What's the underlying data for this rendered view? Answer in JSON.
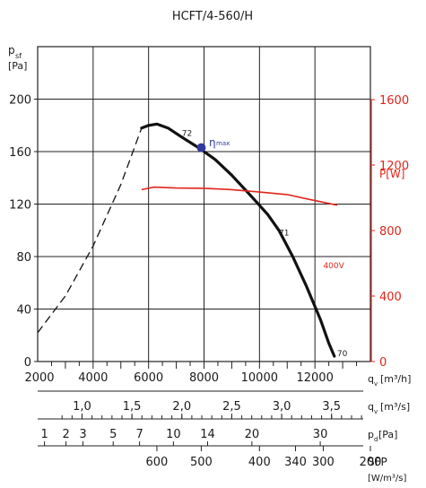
{
  "chart_data": {
    "type": "line",
    "title": "HCFT/4-560/H",
    "y_left": {
      "label_main": "p",
      "label_sub": "sf",
      "unit": "[Pa]",
      "ticks": [
        0,
        40,
        80,
        120,
        160,
        200
      ],
      "range": [
        0,
        240
      ]
    },
    "y_right": {
      "label": "P[W]",
      "ticks": [
        0,
        400,
        800,
        1200,
        1600
      ],
      "ticks_text": [
        "0",
        "400",
        "800",
        "1200",
        "1600"
      ],
      "range": [
        0,
        1600
      ]
    },
    "x": {
      "ticks": [
        2000,
        4000,
        6000,
        8000,
        10000,
        12000
      ],
      "ticks_text": [
        "2000",
        "4000",
        "6000",
        "8000",
        "10000",
        "12000"
      ],
      "range": [
        2000,
        14000
      ],
      "unit_main": "q",
      "unit_sub": "v",
      "unit": "[m³/h]"
    },
    "scale_m3s": {
      "ticks": [
        "1,0",
        "1,5",
        "2,0",
        "2,5",
        "3,0",
        "3,5"
      ],
      "ticks_qv": [
        3600,
        5400,
        7200,
        9000,
        10800,
        12600
      ],
      "unit_main": "q",
      "unit_sub": "v",
      "unit": "[m³/s]"
    },
    "scale_pd": {
      "ticks": [
        "1",
        "2",
        "3",
        "5",
        "7",
        "10",
        "14",
        "20",
        "30"
      ],
      "ticks_pos": [
        0.021,
        0.087,
        0.139,
        0.232,
        0.313,
        0.417,
        0.522,
        0.658,
        0.868
      ],
      "unit_main": "p",
      "unit_sub": "d",
      "unit": "[Pa]"
    },
    "scale_sfp": {
      "ticks": [
        "600",
        "500",
        "400",
        "340",
        "300",
        "200"
      ],
      "ticks_qv": [
        6300,
        7900,
        10000,
        11300,
        12300,
        14000
      ],
      "unit": "SFP",
      "unit2": "[W/m³/s]"
    },
    "series": [
      {
        "name": "pressure",
        "unstable_dashed": [
          [
            2000,
            22
          ],
          [
            3000,
            50
          ],
          [
            4000,
            88
          ],
          [
            5000,
            135
          ],
          [
            5750,
            178
          ]
        ],
        "values": [
          [
            5750,
            178
          ],
          [
            6000,
            180
          ],
          [
            6300,
            181
          ],
          [
            6700,
            178
          ],
          [
            7200,
            171
          ],
          [
            7800,
            163
          ],
          [
            8400,
            154
          ],
          [
            9000,
            142
          ],
          [
            9700,
            126
          ],
          [
            10300,
            112
          ],
          [
            10700,
            100
          ],
          [
            11200,
            80
          ],
          [
            11700,
            57
          ],
          [
            12200,
            32
          ],
          [
            12500,
            14
          ],
          [
            12700,
            4
          ]
        ]
      },
      {
        "name": "400V",
        "axis": "right",
        "values": [
          [
            5750,
            1050
          ],
          [
            6200,
            1065
          ],
          [
            7000,
            1060
          ],
          [
            8000,
            1058
          ],
          [
            9000,
            1050
          ],
          [
            10000,
            1035
          ],
          [
            11000,
            1020
          ],
          [
            11800,
            990
          ],
          [
            12800,
            955
          ]
        ]
      }
    ],
    "eta_max": {
      "x": 7900,
      "y": 163,
      "label_main": "η",
      "label_sub": "max"
    },
    "annotations": [
      {
        "text": "72",
        "x": 7200,
        "y": 172
      },
      {
        "text": "71",
        "x": 10700,
        "y": 96
      },
      {
        "text": "70",
        "x": 12800,
        "y": 4
      },
      {
        "text": "400V",
        "x": 12300,
        "y": 71,
        "axis": "right_label"
      }
    ],
    "grid": true,
    "colors": {
      "pressure": "#111111",
      "power": "#e1251b",
      "eta_marker": "#2f3a9e",
      "grid": "#222222"
    }
  }
}
